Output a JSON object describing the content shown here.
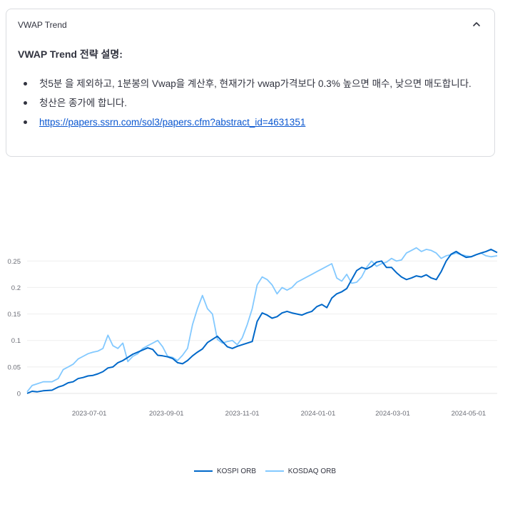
{
  "expander": {
    "title": "VWAP Trend",
    "heading": "VWAP Trend 전략 설명:",
    "bullets": [
      "첫5분 을 제외하고, 1분봉의 Vwap을 계산후, 현재가가 vwap가격보다 0.3% 높으면 매수, 낮으면 매도합니다.",
      "청산은 종가에 합니다."
    ],
    "link_text": "https://papers.ssrn.com/sol3/papers.cfm?abstract_id=4631351",
    "link_href": "https://papers.ssrn.com/sol3/papers.cfm?abstract_id=4631351",
    "icon": "chevron-up-icon"
  },
  "chart_data": {
    "type": "line",
    "title": "",
    "xlabel": "",
    "ylabel": "",
    "ylim": [
      0,
      0.28
    ],
    "xlim": [
      "2023-05-12",
      "2024-05-24"
    ],
    "yticks": [
      "0",
      "0.05",
      "0.1",
      "0.15",
      "0.2",
      "0.25"
    ],
    "xticks": [
      "2023-07-01",
      "2023-09-01",
      "2023-11-01",
      "2024-01-01",
      "2024-03-01",
      "2024-05-01"
    ],
    "grid": "horizontal",
    "legend": "bottom-center",
    "colors": {
      "KOSPI ORB": "#0068c9",
      "KOSDAQ ORB": "#83c9ff"
    },
    "series": [
      {
        "name": "KOSPI ORB",
        "x": [
          "2023-05-12",
          "2023-05-16",
          "2023-05-20",
          "2023-05-25",
          "2023-06-01",
          "2023-06-06",
          "2023-06-10",
          "2023-06-14",
          "2023-06-18",
          "2023-06-22",
          "2023-06-26",
          "2023-06-30",
          "2023-07-04",
          "2023-07-08",
          "2023-07-12",
          "2023-07-16",
          "2023-07-20",
          "2023-07-24",
          "2023-07-28",
          "2023-08-01",
          "2023-08-05",
          "2023-08-09",
          "2023-08-13",
          "2023-08-17",
          "2023-08-21",
          "2023-08-25",
          "2023-08-29",
          "2023-09-02",
          "2023-09-06",
          "2023-09-10",
          "2023-09-14",
          "2023-09-18",
          "2023-09-22",
          "2023-09-26",
          "2023-09-30",
          "2023-10-04",
          "2023-10-08",
          "2023-10-12",
          "2023-10-16",
          "2023-10-20",
          "2023-10-24",
          "2023-10-28",
          "2023-11-01",
          "2023-11-05",
          "2023-11-09",
          "2023-11-13",
          "2023-11-17",
          "2023-11-21",
          "2023-11-25",
          "2023-11-29",
          "2023-12-03",
          "2023-12-07",
          "2023-12-11",
          "2023-12-15",
          "2023-12-19",
          "2023-12-23",
          "2023-12-27",
          "2023-12-31",
          "2024-01-04",
          "2024-01-08",
          "2024-01-12",
          "2024-01-16",
          "2024-01-20",
          "2024-01-24",
          "2024-01-28",
          "2024-02-01",
          "2024-02-05",
          "2024-02-09",
          "2024-02-13",
          "2024-02-17",
          "2024-02-21",
          "2024-02-25",
          "2024-02-29",
          "2024-03-04",
          "2024-03-08",
          "2024-03-12",
          "2024-03-16",
          "2024-03-20",
          "2024-03-24",
          "2024-03-28",
          "2024-04-01",
          "2024-04-05",
          "2024-04-09",
          "2024-04-13",
          "2024-04-17",
          "2024-04-21",
          "2024-04-25",
          "2024-04-29",
          "2024-05-03",
          "2024-05-07",
          "2024-05-11",
          "2024-05-15",
          "2024-05-19",
          "2024-05-24"
        ],
        "values": [
          0.0,
          0.004,
          0.003,
          0.005,
          0.006,
          0.012,
          0.015,
          0.02,
          0.022,
          0.028,
          0.03,
          0.033,
          0.034,
          0.037,
          0.041,
          0.048,
          0.05,
          0.058,
          0.062,
          0.068,
          0.074,
          0.078,
          0.082,
          0.086,
          0.083,
          0.072,
          0.071,
          0.069,
          0.066,
          0.058,
          0.056,
          0.062,
          0.071,
          0.078,
          0.084,
          0.096,
          0.102,
          0.108,
          0.098,
          0.088,
          0.085,
          0.089,
          0.092,
          0.095,
          0.098,
          0.136,
          0.152,
          0.148,
          0.142,
          0.145,
          0.152,
          0.155,
          0.152,
          0.15,
          0.148,
          0.152,
          0.155,
          0.164,
          0.168,
          0.162,
          0.18,
          0.188,
          0.192,
          0.198,
          0.215,
          0.232,
          0.238,
          0.235,
          0.24,
          0.248,
          0.25,
          0.238,
          0.238,
          0.228,
          0.22,
          0.215,
          0.218,
          0.222,
          0.22,
          0.224,
          0.218,
          0.215,
          0.23,
          0.25,
          0.263,
          0.268,
          0.262,
          0.257,
          0.258,
          0.262,
          0.265,
          0.268,
          0.272,
          0.266
        ]
      },
      {
        "name": "KOSDAQ ORB",
        "x": [
          "2023-05-12",
          "2023-05-16",
          "2023-05-20",
          "2023-05-25",
          "2023-06-01",
          "2023-06-06",
          "2023-06-10",
          "2023-06-14",
          "2023-06-18",
          "2023-06-22",
          "2023-06-26",
          "2023-06-30",
          "2023-07-04",
          "2023-07-08",
          "2023-07-12",
          "2023-07-16",
          "2023-07-20",
          "2023-07-24",
          "2023-07-28",
          "2023-08-01",
          "2023-08-05",
          "2023-08-09",
          "2023-08-13",
          "2023-08-17",
          "2023-08-21",
          "2023-08-25",
          "2023-08-29",
          "2023-09-02",
          "2023-09-06",
          "2023-09-10",
          "2023-09-14",
          "2023-09-18",
          "2023-09-22",
          "2023-09-26",
          "2023-09-30",
          "2023-10-04",
          "2023-10-08",
          "2023-10-12",
          "2023-10-16",
          "2023-10-20",
          "2023-10-24",
          "2023-10-28",
          "2023-11-01",
          "2023-11-05",
          "2023-11-09",
          "2023-11-13",
          "2023-11-17",
          "2023-11-21",
          "2023-11-25",
          "2023-11-29",
          "2023-12-03",
          "2023-12-07",
          "2023-12-11",
          "2023-12-15",
          "2023-12-19",
          "2023-12-23",
          "2023-12-27",
          "2023-12-31",
          "2024-01-04",
          "2024-01-08",
          "2024-01-12",
          "2024-01-16",
          "2024-01-20",
          "2024-01-24",
          "2024-01-28",
          "2024-02-01",
          "2024-02-05",
          "2024-02-09",
          "2024-02-13",
          "2024-02-17",
          "2024-02-21",
          "2024-02-25",
          "2024-02-29",
          "2024-03-04",
          "2024-03-08",
          "2024-03-12",
          "2024-03-16",
          "2024-03-20",
          "2024-03-24",
          "2024-03-28",
          "2024-04-01",
          "2024-04-05",
          "2024-04-09",
          "2024-04-13",
          "2024-04-17",
          "2024-04-21",
          "2024-04-25",
          "2024-04-29",
          "2024-05-03",
          "2024-05-07",
          "2024-05-11",
          "2024-05-15",
          "2024-05-19",
          "2024-05-24"
        ],
        "values": [
          0.003,
          0.015,
          0.018,
          0.022,
          0.022,
          0.028,
          0.045,
          0.05,
          0.055,
          0.065,
          0.07,
          0.075,
          0.078,
          0.08,
          0.085,
          0.11,
          0.09,
          0.085,
          0.095,
          0.06,
          0.07,
          0.075,
          0.085,
          0.09,
          0.095,
          0.1,
          0.088,
          0.07,
          0.068,
          0.062,
          0.072,
          0.085,
          0.13,
          0.16,
          0.185,
          0.16,
          0.15,
          0.102,
          0.095,
          0.098,
          0.1,
          0.092,
          0.105,
          0.13,
          0.16,
          0.205,
          0.22,
          0.215,
          0.205,
          0.188,
          0.2,
          0.195,
          0.2,
          0.21,
          0.215,
          0.22,
          0.225,
          0.23,
          0.235,
          0.24,
          0.245,
          0.218,
          0.212,
          0.225,
          0.208,
          0.21,
          0.22,
          0.238,
          0.25,
          0.24,
          0.245,
          0.248,
          0.255,
          0.25,
          0.252,
          0.265,
          0.27,
          0.275,
          0.268,
          0.272,
          0.27,
          0.265,
          0.255,
          0.26,
          0.262,
          0.265,
          0.262,
          0.26,
          0.258,
          0.262,
          0.265,
          0.26,
          0.258,
          0.26
        ]
      }
    ]
  }
}
